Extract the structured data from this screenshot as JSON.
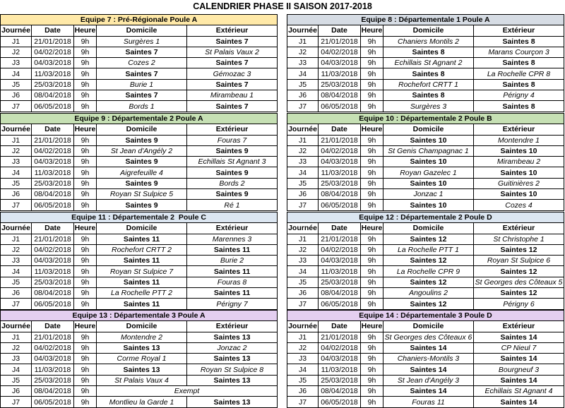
{
  "title": "CALENDRIER PHASE II SAISON 2017-2018",
  "tables": [
    {
      "heading": "Equipe 7 : Pré-Régionale Poule A",
      "color": "#ffe9a8",
      "columns": [
        "Journée",
        "Date",
        "Heure",
        "Domicile",
        "Extérieur"
      ],
      "rows": [
        [
          "J1",
          "21/01/2018",
          "9h",
          "Surgères 1",
          "Saintes 7"
        ],
        [
          "J2",
          "04/02/2018",
          "9h",
          "Saintes 7",
          "St Palais Vaux 2"
        ],
        [
          "J3",
          "04/03/2018",
          "9h",
          "Cozes 2",
          "Saintes 7"
        ],
        [
          "J4",
          "11/03/2018",
          "9h",
          "Saintes 7",
          "Gémozac 3"
        ],
        [
          "J5",
          "25/03/2018",
          "9h",
          "Burie 1",
          "Saintes 7"
        ],
        [
          "J6",
          "08/04/2018",
          "9h",
          "Saintes 7",
          "Mirambeau 1"
        ],
        [
          "J7",
          "06/05/2018",
          "9h",
          "Bords 1",
          "Saintes 7"
        ]
      ]
    },
    {
      "heading": "Equipe 8 : Départementale 1 Poule A",
      "color": "#d6dce4",
      "columns": [
        "Journée",
        "Date",
        "Heure",
        "Domicile",
        "Extérieur"
      ],
      "rows": [
        [
          "J1",
          "21/01/2018",
          "9h",
          "Chaniers Montils 2",
          "Saintes 8"
        ],
        [
          "J2",
          "04/02/2018",
          "9h",
          "Saintes 8",
          "Marans Courçon 3"
        ],
        [
          "J3",
          "04/03/2018",
          "9h",
          "Echillais St Agnant 2",
          "Saintes 8"
        ],
        [
          "J4",
          "11/03/2018",
          "9h",
          "Saintes 8",
          "La Rochelle CPR 8"
        ],
        [
          "J5",
          "25/03/2018",
          "9h",
          "Rochefort CRTT 1",
          "Saintes 8"
        ],
        [
          "J6",
          "08/04/2018",
          "9h",
          "Saintes 8",
          "Périgny 4"
        ],
        [
          "J7",
          "06/05/2018",
          "9h",
          "Surgères 3",
          "Saintes 8"
        ]
      ]
    },
    {
      "heading": "Equipe 9 : Départementale 2 Poule A",
      "color": "#c6e0b4",
      "columns": [
        "Journée",
        "Date",
        "Heure",
        "Domicile",
        "Extérieur"
      ],
      "rows": [
        [
          "J1",
          "21/01/2018",
          "9h",
          "Saintes 9",
          "Fouras 7"
        ],
        [
          "J2",
          "04/02/2018",
          "9h",
          "St Jean d'Angély 2",
          "Saintes 9"
        ],
        [
          "J3",
          "04/03/2018",
          "9h",
          "Saintes 9",
          "Echillais St Agnant 3"
        ],
        [
          "J4",
          "11/03/2018",
          "9h",
          "Aigrefeuille 4",
          "Saintes 9"
        ],
        [
          "J5",
          "25/03/2018",
          "9h",
          "Saintes 9",
          "Bords 2"
        ],
        [
          "J6",
          "08/04/2018",
          "9h",
          "Royan St Sulpice 5",
          "Saintes 9"
        ],
        [
          "J7",
          "06/05/2018",
          "9h",
          "Saintes 9",
          "Ré 1"
        ]
      ]
    },
    {
      "heading": "Equipe 10 : Départementale 2 Poule B",
      "color": "#c6e0b4",
      "columns": [
        "Journée",
        "Date",
        "Heure",
        "Domicile",
        "Extérieur"
      ],
      "rows": [
        [
          "J1",
          "21/01/2018",
          "9h",
          "Saintes 10",
          "Montendre 1"
        ],
        [
          "J2",
          "04/02/2018",
          "9h",
          "St Genis Champagnac 1",
          "Saintes 10"
        ],
        [
          "J3",
          "04/03/2018",
          "9h",
          "Saintes 10",
          "Mirambeau 2"
        ],
        [
          "J4",
          "11/03/2018",
          "9h",
          "Royan Gazelec 1",
          "Saintes 10"
        ],
        [
          "J5",
          "25/03/2018",
          "9h",
          "Saintes 10",
          "Guitinières 2"
        ],
        [
          "J6",
          "08/04/2018",
          "9h",
          "Jonzac 1",
          "Saintes 10"
        ],
        [
          "J7",
          "06/05/2018",
          "9h",
          "Saintes 10",
          "Cozes 4"
        ]
      ]
    },
    {
      "heading": "Equipe 11 : Départementale 2  Poule C",
      "color": "#dce6f1",
      "columns": [
        "Journée",
        "Date",
        "Heure",
        "Domicile",
        "Extérieur"
      ],
      "rows": [
        [
          "J1",
          "21/01/2018",
          "9h",
          "Saintes 11",
          "Marennes 3"
        ],
        [
          "J2",
          "04/02/2018",
          "9h",
          "Rochefort CRTT 2",
          "Saintes 11"
        ],
        [
          "J3",
          "04/03/2018",
          "9h",
          "Saintes 11",
          "Burie 2"
        ],
        [
          "J4",
          "11/03/2018",
          "9h",
          "Royan St Sulpice 7",
          "Saintes 11"
        ],
        [
          "J5",
          "25/03/2018",
          "9h",
          "Saintes 11",
          "Fouras 8"
        ],
        [
          "J6",
          "08/04/2018",
          "9h",
          "La Rochelle PTT 2",
          "Saintes 11"
        ],
        [
          "J7",
          "06/05/2018",
          "9h",
          "Saintes 11",
          "Périgny 7"
        ]
      ]
    },
    {
      "heading": "Equipe 12 : Départementale 2 Poule D",
      "color": "#dce6f1",
      "columns": [
        "Journée",
        "Date",
        "Heure",
        "Domicile",
        "Extérieur"
      ],
      "rows": [
        [
          "J1",
          "21/01/2018",
          "9h",
          "Saintes 12",
          "St Christophe 1"
        ],
        [
          "J2",
          "04/02/2018",
          "9h",
          "La Rochelle PTT 1",
          "Saintes 12"
        ],
        [
          "J3",
          "04/03/2018",
          "9h",
          "Saintes 12",
          "Royan St Sulpice 6"
        ],
        [
          "J4",
          "11/03/2018",
          "9h",
          "La Rochelle CPR 9",
          "Saintes 12"
        ],
        [
          "J5",
          "25/03/2018",
          "9h",
          "Saintes 12",
          "St Georges des Côteaux 5"
        ],
        [
          "J6",
          "08/04/2018",
          "9h",
          "Angoulins 2",
          "Saintes 12"
        ],
        [
          "J7",
          "06/05/2018",
          "9h",
          "Saintes 12",
          "Périgny 6"
        ]
      ]
    },
    {
      "heading": "Equipe 13 : Départementale 3 Poule A",
      "color": "#e4cff0",
      "columns": [
        "Journée",
        "Date",
        "Heure",
        "Domicile",
        "Extérieur"
      ],
      "rows": [
        [
          "J1",
          "21/01/2018",
          "9h",
          "Montendre 2",
          "Saintes 13"
        ],
        [
          "J2",
          "04/02/2018",
          "9h",
          "Saintes 13",
          "Jonzac 2"
        ],
        [
          "J3",
          "04/03/2018",
          "9h",
          "Corme Royal 1",
          "Saintes 13"
        ],
        [
          "J4",
          "11/03/2018",
          "9h",
          "Saintes 13",
          "Royan St Sulpice 8"
        ],
        [
          "J5",
          "25/03/2018",
          "9h",
          "St Palais Vaux 4",
          "Saintes 13"
        ],
        [
          "J6",
          "08/04/2018",
          "9h",
          "Exempt"
        ],
        [
          "J7",
          "06/05/2018",
          "9h",
          "Montlieu la Garde 1",
          "Saintes 13"
        ]
      ]
    },
    {
      "heading": "Equipe 14 : Départementale 3 Poule D",
      "color": "#e4cff0",
      "columns": [
        "Journée",
        "Date",
        "Heure",
        "Domicile",
        "Extérieur"
      ],
      "rows": [
        [
          "J1",
          "21/01/2018",
          "9h",
          "St Georges des Côteaux 6",
          "Saintes 14"
        ],
        [
          "J2",
          "04/02/2018",
          "9h",
          "Saintes 14",
          "CP Nieul 7"
        ],
        [
          "J3",
          "04/03/2018",
          "9h",
          "Chaniers-Montils 3",
          "Saintes 14"
        ],
        [
          "J4",
          "11/03/2018",
          "9h",
          "Saintes 14",
          "Bourgneuf 3"
        ],
        [
          "J5",
          "25/03/2018",
          "9h",
          "St Jean d'Angély 3",
          "Saintes 14"
        ],
        [
          "J6",
          "08/04/2018",
          "9h",
          "Saintes 14",
          "Echillais St Agnant 4"
        ],
        [
          "J7",
          "06/05/2018",
          "9h",
          "Fouras 11",
          "Saintes 14"
        ]
      ]
    }
  ]
}
